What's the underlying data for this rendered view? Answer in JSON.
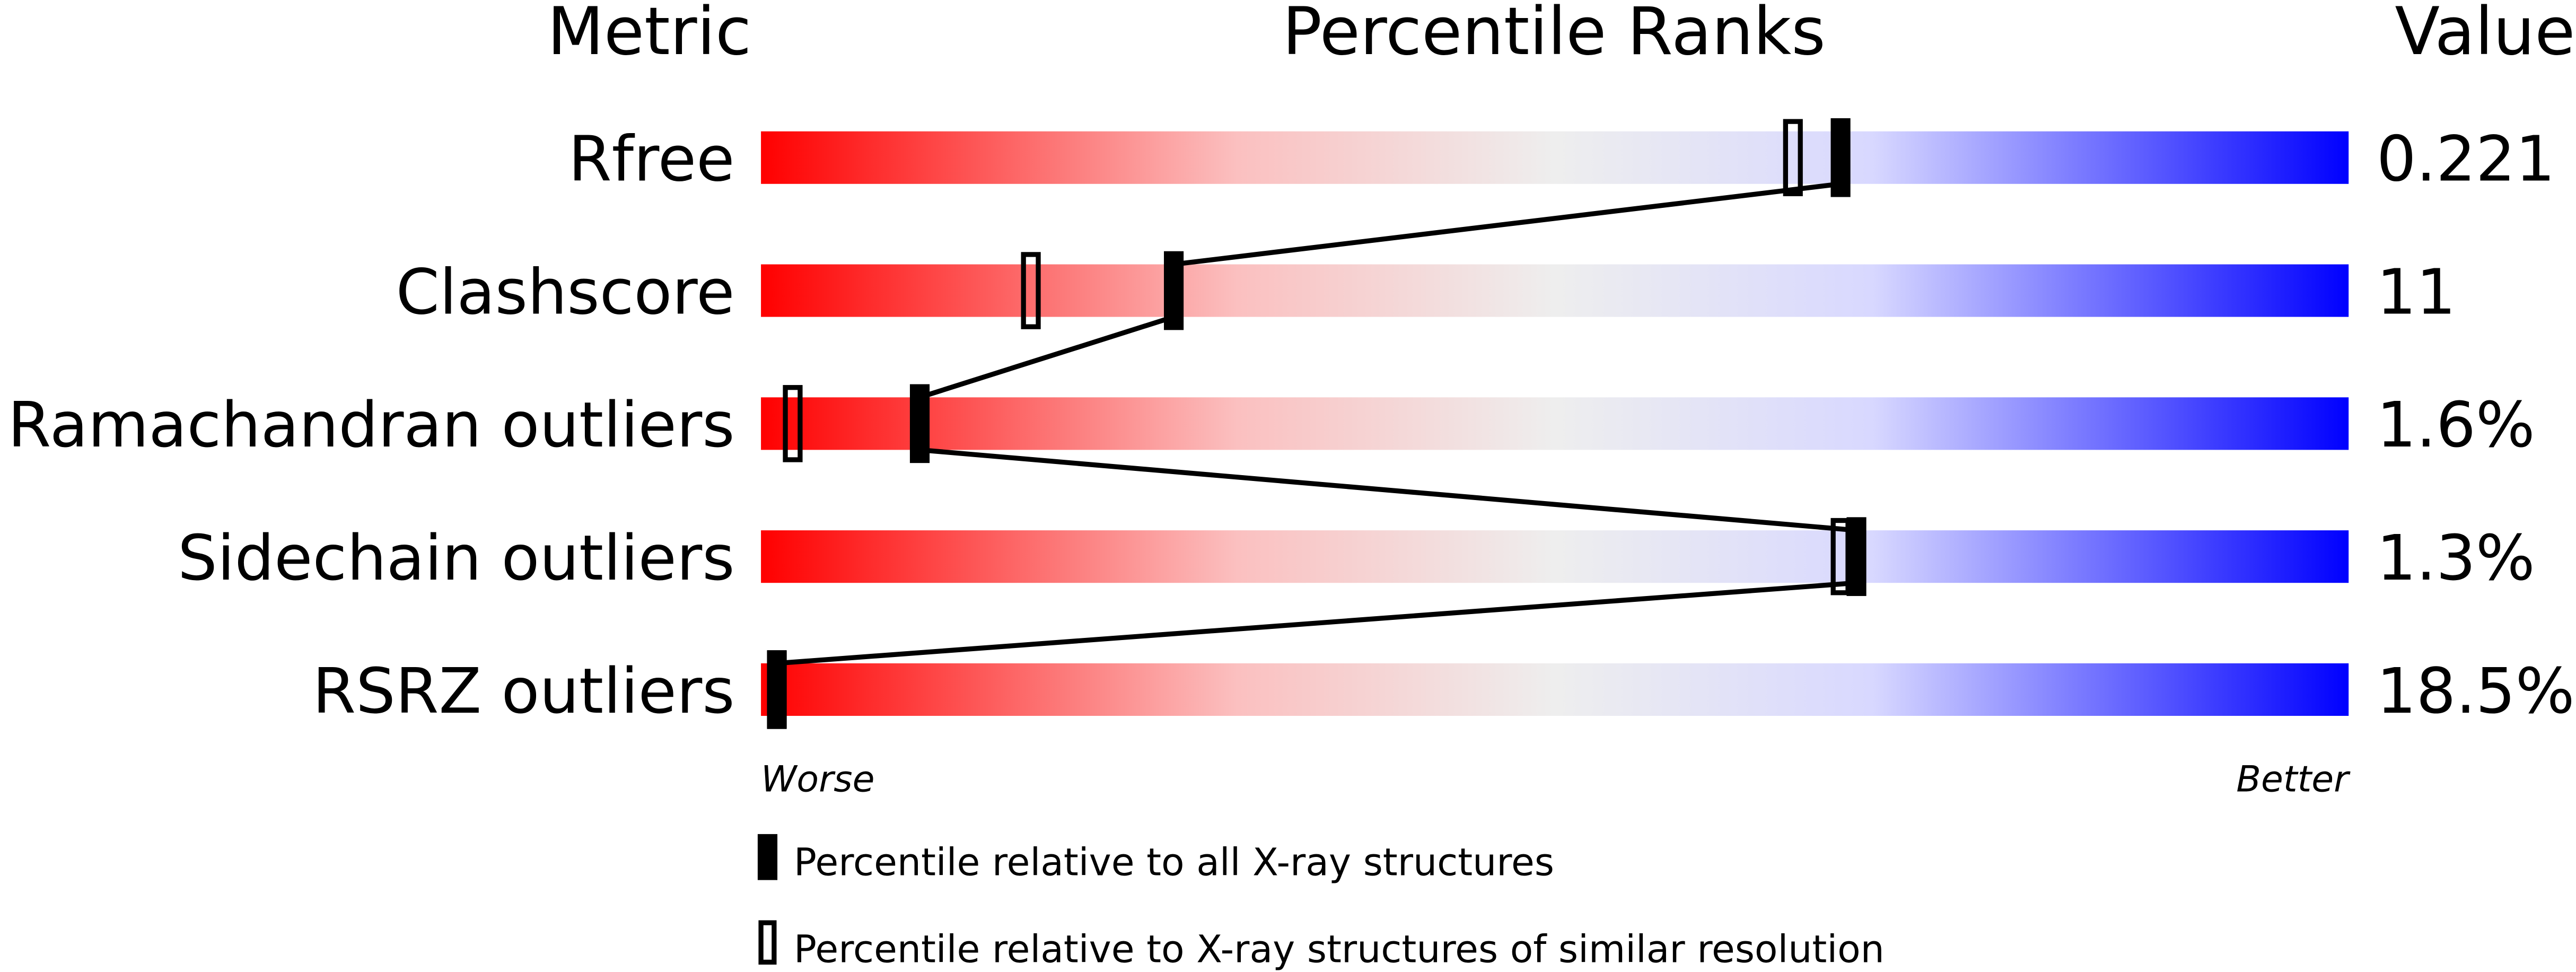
{
  "chart_data": {
    "type": "percentile-rank-bars",
    "headers": {
      "metric": "Metric",
      "ranks": "Percentile Ranks",
      "value": "Value"
    },
    "xlim": [
      0,
      100
    ],
    "axis_labels": {
      "left": "Worse",
      "right": "Better"
    },
    "metrics": [
      {
        "label": "Rfree",
        "value": "0.221",
        "percentile_all": 68,
        "percentile_similar": 65
      },
      {
        "label": "Clashscore",
        "value": "11",
        "percentile_all": 26,
        "percentile_similar": 17
      },
      {
        "label": "Ramachandran outliers",
        "value": "1.6%",
        "percentile_all": 10,
        "percentile_similar": 2
      },
      {
        "label": "Sidechain outliers",
        "value": "1.3%",
        "percentile_all": 69,
        "percentile_similar": 68
      },
      {
        "label": "RSRZ outliers",
        "value": "18.5%",
        "percentile_all": 1,
        "percentile_similar": 1
      }
    ],
    "legend": [
      {
        "marker": "filled",
        "label": "Percentile relative to all X-ray structures"
      },
      {
        "marker": "open",
        "label": "Percentile relative to X-ray structures of similar resolution"
      }
    ],
    "colors": {
      "worse": "#ff0000",
      "middle": "#eeeeee",
      "better": "#0000ff"
    }
  }
}
